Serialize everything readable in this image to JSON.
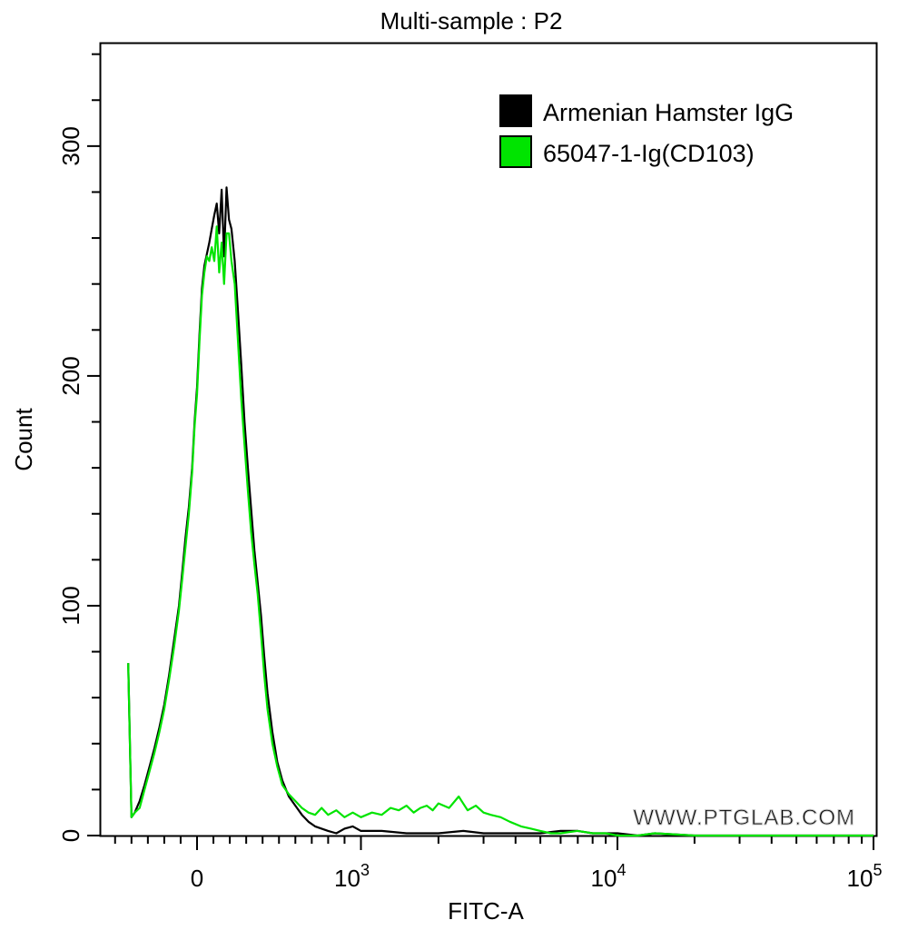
{
  "chart_data": {
    "type": "line",
    "title": "Multi-sample : P2",
    "xlabel": "FITC-A",
    "ylabel": "Count",
    "x_scale": "biexponential",
    "ylim": [
      0,
      345
    ],
    "y_ticks": [
      0,
      100,
      200,
      300
    ],
    "x_ticks": [
      {
        "value": 0,
        "base": "0",
        "exp": ""
      },
      {
        "value": 1000,
        "base": "10",
        "exp": "3"
      },
      {
        "value": 10000,
        "base": "10",
        "exp": "4"
      },
      {
        "value": 100000,
        "base": "10",
        "exp": "5"
      }
    ],
    "legend_position": "top-right",
    "grid": false,
    "watermark": "WWW.PTGLAB.COM",
    "series": [
      {
        "name": "Armenian Hamster IgG",
        "color": "#000000",
        "points": [
          [
            -420,
            75
          ],
          [
            -400,
            8
          ],
          [
            -380,
            10
          ],
          [
            -350,
            15
          ],
          [
            -320,
            22
          ],
          [
            -290,
            30
          ],
          [
            -260,
            38
          ],
          [
            -230,
            47
          ],
          [
            -200,
            57
          ],
          [
            -170,
            70
          ],
          [
            -140,
            85
          ],
          [
            -110,
            100
          ],
          [
            -90,
            115
          ],
          [
            -70,
            130
          ],
          [
            -50,
            143
          ],
          [
            -30,
            160
          ],
          [
            -15,
            180
          ],
          [
            0,
            195
          ],
          [
            15,
            218
          ],
          [
            30,
            238
          ],
          [
            45,
            248
          ],
          [
            60,
            253
          ],
          [
            75,
            258
          ],
          [
            90,
            264
          ],
          [
            105,
            270
          ],
          [
            120,
            275
          ],
          [
            135,
            262
          ],
          [
            150,
            281
          ],
          [
            165,
            252
          ],
          [
            180,
            282
          ],
          [
            195,
            268
          ],
          [
            210,
            264
          ],
          [
            230,
            250
          ],
          [
            250,
            228
          ],
          [
            270,
            205
          ],
          [
            290,
            180
          ],
          [
            310,
            160
          ],
          [
            330,
            142
          ],
          [
            350,
            124
          ],
          [
            370,
            110
          ],
          [
            390,
            96
          ],
          [
            410,
            78
          ],
          [
            430,
            62
          ],
          [
            460,
            45
          ],
          [
            490,
            32
          ],
          [
            520,
            24
          ],
          [
            560,
            17
          ],
          [
            600,
            13
          ],
          [
            640,
            9
          ],
          [
            680,
            6
          ],
          [
            720,
            4
          ],
          [
            760,
            3
          ],
          [
            800,
            2
          ],
          [
            850,
            1
          ],
          [
            900,
            3
          ],
          [
            950,
            4
          ],
          [
            1000,
            2
          ],
          [
            1200,
            2
          ],
          [
            1500,
            1
          ],
          [
            2000,
            1
          ],
          [
            2500,
            2
          ],
          [
            3000,
            1
          ],
          [
            4000,
            1
          ],
          [
            5000,
            1
          ],
          [
            6000,
            2
          ],
          [
            7000,
            2
          ],
          [
            8000,
            1
          ],
          [
            10000,
            1
          ],
          [
            12000,
            0
          ],
          [
            14000,
            1
          ],
          [
            20000,
            0
          ],
          [
            50000,
            0
          ],
          [
            100000,
            0
          ]
        ]
      },
      {
        "name": "65047-1-Ig(CD103)",
        "color": "#00e400",
        "points": [
          [
            -420,
            75
          ],
          [
            -400,
            8
          ],
          [
            -380,
            10
          ],
          [
            -350,
            12
          ],
          [
            -320,
            20
          ],
          [
            -290,
            28
          ],
          [
            -260,
            36
          ],
          [
            -230,
            45
          ],
          [
            -200,
            55
          ],
          [
            -170,
            68
          ],
          [
            -140,
            82
          ],
          [
            -110,
            98
          ],
          [
            -90,
            112
          ],
          [
            -70,
            126
          ],
          [
            -50,
            140
          ],
          [
            -30,
            158
          ],
          [
            -15,
            178
          ],
          [
            0,
            192
          ],
          [
            15,
            215
          ],
          [
            30,
            235
          ],
          [
            45,
            245
          ],
          [
            60,
            252
          ],
          [
            75,
            250
          ],
          [
            90,
            256
          ],
          [
            105,
            250
          ],
          [
            120,
            265
          ],
          [
            135,
            245
          ],
          [
            150,
            258
          ],
          [
            165,
            240
          ],
          [
            180,
            262
          ],
          [
            195,
            262
          ],
          [
            210,
            250
          ],
          [
            230,
            240
          ],
          [
            250,
            215
          ],
          [
            270,
            190
          ],
          [
            290,
            170
          ],
          [
            310,
            150
          ],
          [
            330,
            132
          ],
          [
            350,
            118
          ],
          [
            370,
            105
          ],
          [
            390,
            88
          ],
          [
            410,
            70
          ],
          [
            430,
            55
          ],
          [
            460,
            40
          ],
          [
            490,
            30
          ],
          [
            520,
            22
          ],
          [
            560,
            18
          ],
          [
            600,
            15
          ],
          [
            640,
            12
          ],
          [
            680,
            10
          ],
          [
            720,
            9
          ],
          [
            760,
            12
          ],
          [
            800,
            9
          ],
          [
            850,
            11
          ],
          [
            900,
            8
          ],
          [
            950,
            10
          ],
          [
            1000,
            8
          ],
          [
            1100,
            10
          ],
          [
            1200,
            9
          ],
          [
            1300,
            12
          ],
          [
            1400,
            11
          ],
          [
            1500,
            13
          ],
          [
            1600,
            10
          ],
          [
            1700,
            12
          ],
          [
            1800,
            13
          ],
          [
            1900,
            11
          ],
          [
            2000,
            14
          ],
          [
            2200,
            12
          ],
          [
            2400,
            17
          ],
          [
            2600,
            11
          ],
          [
            2800,
            13
          ],
          [
            3000,
            10
          ],
          [
            3200,
            9
          ],
          [
            3500,
            8
          ],
          [
            3800,
            6
          ],
          [
            4200,
            4
          ],
          [
            4600,
            3
          ],
          [
            5000,
            2
          ],
          [
            5500,
            1
          ],
          [
            6000,
            1
          ],
          [
            7000,
            2
          ],
          [
            8000,
            1
          ],
          [
            9000,
            1
          ],
          [
            10000,
            0
          ],
          [
            12000,
            0
          ],
          [
            14000,
            1
          ],
          [
            20000,
            0
          ],
          [
            50000,
            0
          ],
          [
            100000,
            0
          ]
        ]
      }
    ]
  }
}
